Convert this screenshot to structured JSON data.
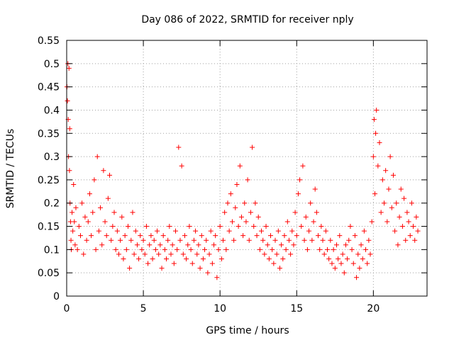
{
  "chart_data": {
    "type": "scatter",
    "title": "Day 086 of 2022, SRMTID for receiver nply",
    "xlabel": "GPS time / hours",
    "ylabel": "SRMTID / TECUs",
    "xlim": [
      0,
      23.5
    ],
    "ylim": [
      0,
      0.55
    ],
    "xticks": [
      0,
      5,
      10,
      15,
      20
    ],
    "xtick_labels": [
      "0",
      "5",
      "10",
      "15",
      "20"
    ],
    "yticks": [
      0,
      0.05,
      0.1,
      0.15,
      0.2,
      0.25,
      0.3,
      0.35,
      0.4,
      0.45,
      0.5,
      0.55
    ],
    "ytick_labels": [
      "0",
      "0.05",
      "0.1",
      "0.15",
      "0.2",
      "0.25",
      "0.3",
      "0.35",
      "0.4",
      "0.45",
      "0.5",
      "0.55"
    ],
    "grid": true,
    "marker": "+",
    "color": "#ff0000",
    "series": [
      {
        "name": "SRMTID",
        "x": [
          0.02,
          0.05,
          0.08,
          0.1,
          0.12,
          0.15,
          0.18,
          0.2,
          0.22,
          0.25,
          0.28,
          0.3,
          0.35,
          0.4,
          0.45,
          0.5,
          0.55,
          0.6,
          0.7,
          0.8,
          0.9,
          1.0,
          1.1,
          1.2,
          1.3,
          1.4,
          1.5,
          1.6,
          1.7,
          1.8,
          1.9,
          2.0,
          2.1,
          2.2,
          2.3,
          2.4,
          2.5,
          2.6,
          2.7,
          2.8,
          2.9,
          3.0,
          3.1,
          3.2,
          3.3,
          3.4,
          3.5,
          3.6,
          3.7,
          3.8,
          3.9,
          4.0,
          4.1,
          4.2,
          4.3,
          4.4,
          4.5,
          4.6,
          4.7,
          4.8,
          4.9,
          5.0,
          5.1,
          5.2,
          5.3,
          5.4,
          5.5,
          5.6,
          5.7,
          5.8,
          5.9,
          6.0,
          6.1,
          6.2,
          6.3,
          6.4,
          6.5,
          6.6,
          6.7,
          6.8,
          6.9,
          7.0,
          7.1,
          7.2,
          7.3,
          7.4,
          7.5,
          7.6,
          7.7,
          7.8,
          7.9,
          8.0,
          8.1,
          8.2,
          8.3,
          8.4,
          8.5,
          8.6,
          8.7,
          8.8,
          8.9,
          9.0,
          9.1,
          9.2,
          9.3,
          9.4,
          9.5,
          9.6,
          9.7,
          9.8,
          9.9,
          10.0,
          10.1,
          10.2,
          10.3,
          10.4,
          10.5,
          10.6,
          10.7,
          10.8,
          10.9,
          11.0,
          11.1,
          11.2,
          11.3,
          11.4,
          11.5,
          11.6,
          11.7,
          11.8,
          11.9,
          12.0,
          12.1,
          12.2,
          12.3,
          12.4,
          12.5,
          12.6,
          12.7,
          12.8,
          12.9,
          13.0,
          13.1,
          13.2,
          13.3,
          13.4,
          13.5,
          13.6,
          13.7,
          13.8,
          13.9,
          14.0,
          14.1,
          14.2,
          14.3,
          14.4,
          14.5,
          14.6,
          14.7,
          14.8,
          14.9,
          15.0,
          15.1,
          15.2,
          15.3,
          15.4,
          15.5,
          15.6,
          15.7,
          15.8,
          15.9,
          16.0,
          16.1,
          16.2,
          16.3,
          16.4,
          16.5,
          16.6,
          16.7,
          16.8,
          16.9,
          17.0,
          17.1,
          17.2,
          17.3,
          17.4,
          17.5,
          17.6,
          17.7,
          17.8,
          17.9,
          18.0,
          18.1,
          18.2,
          18.3,
          18.4,
          18.5,
          18.6,
          18.7,
          18.8,
          18.9,
          19.0,
          19.1,
          19.2,
          19.3,
          19.4,
          19.5,
          19.6,
          19.7,
          19.8,
          19.9,
          20.0,
          20.05,
          20.1,
          20.15,
          20.2,
          20.3,
          20.4,
          20.5,
          20.6,
          20.7,
          20.8,
          20.9,
          21.0,
          21.1,
          21.2,
          21.3,
          21.4,
          21.5,
          21.6,
          21.7,
          21.8,
          21.9,
          22.0,
          22.1,
          22.2,
          22.3,
          22.4,
          22.5,
          22.6,
          22.7,
          22.8,
          22.9
        ],
        "y": [
          0.45,
          0.42,
          0.5,
          0.38,
          0.3,
          0.49,
          0.27,
          0.36,
          0.2,
          0.16,
          0.12,
          0.1,
          0.18,
          0.14,
          0.24,
          0.16,
          0.11,
          0.19,
          0.1,
          0.15,
          0.13,
          0.2,
          0.09,
          0.17,
          0.12,
          0.16,
          0.22,
          0.13,
          0.18,
          0.25,
          0.1,
          0.3,
          0.14,
          0.19,
          0.11,
          0.27,
          0.16,
          0.13,
          0.21,
          0.26,
          0.12,
          0.15,
          0.18,
          0.1,
          0.14,
          0.09,
          0.12,
          0.17,
          0.08,
          0.13,
          0.1,
          0.15,
          0.06,
          0.12,
          0.18,
          0.09,
          0.14,
          0.11,
          0.08,
          0.13,
          0.1,
          0.12,
          0.09,
          0.15,
          0.07,
          0.11,
          0.13,
          0.08,
          0.12,
          0.1,
          0.14,
          0.09,
          0.11,
          0.06,
          0.13,
          0.1,
          0.08,
          0.12,
          0.15,
          0.09,
          0.11,
          0.07,
          0.14,
          0.1,
          0.32,
          0.12,
          0.28,
          0.09,
          0.13,
          0.08,
          0.11,
          0.15,
          0.1,
          0.07,
          0.12,
          0.14,
          0.09,
          0.11,
          0.06,
          0.13,
          0.08,
          0.1,
          0.12,
          0.05,
          0.09,
          0.14,
          0.07,
          0.11,
          0.13,
          0.04,
          0.1,
          0.15,
          0.08,
          0.12,
          0.18,
          0.1,
          0.2,
          0.14,
          0.22,
          0.16,
          0.12,
          0.19,
          0.24,
          0.15,
          0.28,
          0.17,
          0.13,
          0.2,
          0.16,
          0.25,
          0.12,
          0.18,
          0.32,
          0.15,
          0.2,
          0.13,
          0.17,
          0.1,
          0.14,
          0.12,
          0.09,
          0.15,
          0.11,
          0.08,
          0.13,
          0.1,
          0.07,
          0.12,
          0.09,
          0.14,
          0.06,
          0.11,
          0.08,
          0.13,
          0.1,
          0.16,
          0.12,
          0.09,
          0.14,
          0.11,
          0.18,
          0.13,
          0.22,
          0.25,
          0.15,
          0.28,
          0.12,
          0.17,
          0.1,
          0.14,
          0.2,
          0.12,
          0.16,
          0.23,
          0.18,
          0.13,
          0.1,
          0.15,
          0.12,
          0.09,
          0.14,
          0.1,
          0.08,
          0.12,
          0.07,
          0.1,
          0.06,
          0.11,
          0.08,
          0.13,
          0.07,
          0.09,
          0.05,
          0.11,
          0.08,
          0.12,
          0.15,
          0.1,
          0.07,
          0.13,
          0.04,
          0.09,
          0.06,
          0.11,
          0.08,
          0.14,
          0.1,
          0.07,
          0.12,
          0.09,
          0.16,
          0.3,
          0.38,
          0.22,
          0.35,
          0.4,
          0.28,
          0.33,
          0.18,
          0.25,
          0.2,
          0.27,
          0.16,
          0.23,
          0.3,
          0.19,
          0.26,
          0.14,
          0.2,
          0.11,
          0.17,
          0.23,
          0.15,
          0.21,
          0.12,
          0.18,
          0.16,
          0.13,
          0.2,
          0.15,
          0.12,
          0.17,
          0.14
        ]
      }
    ]
  }
}
